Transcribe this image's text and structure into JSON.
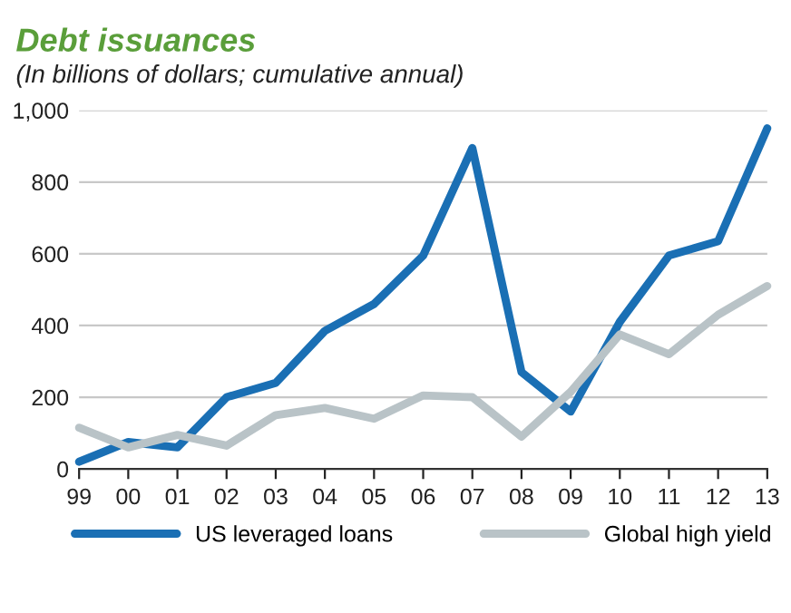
{
  "chart_data": {
    "type": "line",
    "title": "Debt issuances",
    "subtitle": "(In billions of dollars; cumulative annual)",
    "categories": [
      "99",
      "00",
      "01",
      "02",
      "03",
      "04",
      "05",
      "06",
      "07",
      "08",
      "09",
      "10",
      "11",
      "12",
      "13"
    ],
    "series": [
      {
        "name": "US leveraged loans",
        "color": "#1a6fb4",
        "values": [
          20,
          75,
          60,
          200,
          240,
          385,
          460,
          595,
          895,
          270,
          160,
          410,
          595,
          635,
          950
        ]
      },
      {
        "name": "Global high yield",
        "color": "#b9c3c7",
        "values": [
          115,
          60,
          95,
          65,
          150,
          170,
          140,
          205,
          200,
          90,
          215,
          375,
          320,
          430,
          510
        ]
      }
    ],
    "ylim": [
      0,
      1000
    ],
    "yticks": [
      0,
      200,
      400,
      600,
      {
        "value": 800,
        "label": "800"
      },
      {
        "value": 1000,
        "label": "1,000"
      }
    ],
    "grid": "y",
    "legend": "bottom",
    "marker": "none",
    "line_style": "solid"
  }
}
